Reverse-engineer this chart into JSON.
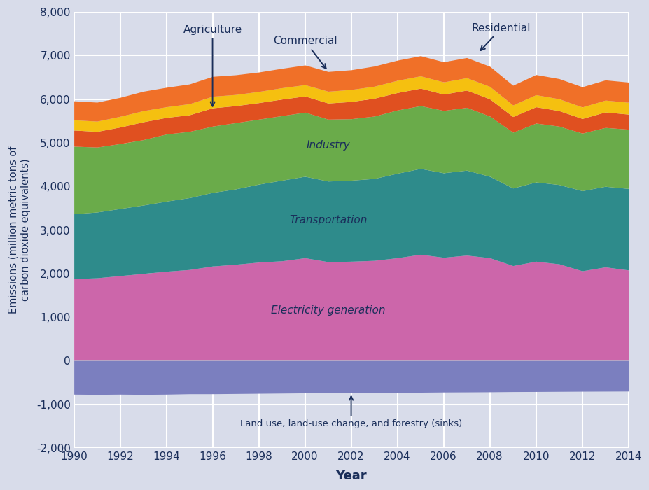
{
  "years": [
    1990,
    1991,
    1992,
    1993,
    1994,
    1995,
    1996,
    1997,
    1998,
    1999,
    2000,
    2001,
    2002,
    2003,
    2004,
    2005,
    2006,
    2007,
    2008,
    2009,
    2010,
    2011,
    2012,
    2013,
    2014
  ],
  "land_use": [
    -770,
    -775,
    -770,
    -775,
    -770,
    -760,
    -760,
    -755,
    -750,
    -745,
    -740,
    -738,
    -735,
    -730,
    -725,
    -725,
    -720,
    -718,
    -715,
    -710,
    -708,
    -705,
    -702,
    -700,
    -698
  ],
  "electricity": [
    1880,
    1900,
    1950,
    2000,
    2050,
    2090,
    2170,
    2210,
    2260,
    2290,
    2360,
    2270,
    2280,
    2300,
    2360,
    2440,
    2370,
    2420,
    2360,
    2180,
    2280,
    2220,
    2060,
    2150,
    2080
  ],
  "transportation": [
    1490,
    1510,
    1540,
    1570,
    1610,
    1650,
    1690,
    1730,
    1790,
    1850,
    1870,
    1850,
    1860,
    1880,
    1940,
    1970,
    1940,
    1950,
    1870,
    1780,
    1820,
    1820,
    1840,
    1850,
    1870
  ],
  "industry": [
    1550,
    1490,
    1490,
    1500,
    1540,
    1520,
    1520,
    1520,
    1490,
    1480,
    1470,
    1420,
    1410,
    1430,
    1450,
    1440,
    1430,
    1440,
    1380,
    1280,
    1350,
    1340,
    1320,
    1350,
    1360
  ],
  "residential": [
    370,
    360,
    380,
    410,
    380,
    380,
    420,
    390,
    380,
    380,
    370,
    370,
    395,
    410,
    400,
    400,
    375,
    395,
    395,
    360,
    375,
    355,
    335,
    355,
    345
  ],
  "commercial": [
    235,
    235,
    245,
    255,
    245,
    255,
    265,
    255,
    255,
    260,
    260,
    270,
    275,
    275,
    280,
    282,
    278,
    285,
    285,
    265,
    275,
    272,
    265,
    272,
    272
  ],
  "agriculture": [
    435,
    435,
    435,
    445,
    445,
    452,
    455,
    452,
    445,
    445,
    452,
    452,
    452,
    462,
    462,
    462,
    462,
    462,
    462,
    452,
    462,
    462,
    462,
    462,
    462
  ],
  "colors": {
    "land_use": "#7b7fbf",
    "electricity": "#cc66aa",
    "transportation": "#2e8b8b",
    "industry": "#6aab4a",
    "residential": "#e05020",
    "commercial": "#f5c010",
    "agriculture": "#f07028"
  },
  "xlabel": "Year",
  "ylabel": "Emissions (million metric tons of\ncarbon dioxide equivalents)",
  "ylim": [
    -2000,
    8000
  ],
  "xlim": [
    1990,
    2014
  ],
  "yticks": [
    -2000,
    -1000,
    0,
    1000,
    2000,
    3000,
    4000,
    5000,
    6000,
    7000,
    8000
  ],
  "xticks": [
    1990,
    1992,
    1994,
    1996,
    1998,
    2000,
    2002,
    2004,
    2006,
    2008,
    2010,
    2012,
    2014
  ],
  "background_color": "#d8dcea",
  "label_color": "#1a2e5a",
  "grid_color": "#ffffff",
  "font_size_ticks": 11,
  "font_size_label": 13,
  "font_size_ann": 11
}
